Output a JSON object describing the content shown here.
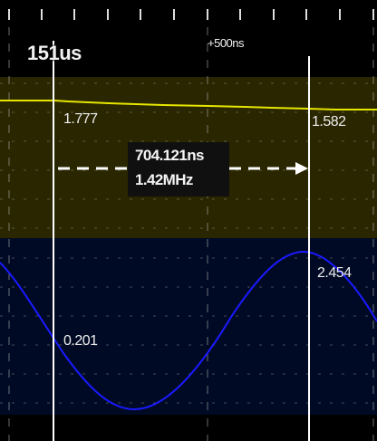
{
  "timebase": {
    "cursor_time": "151us",
    "offset_label": "+500ns"
  },
  "channel_a": {
    "value_left": "1.777",
    "value_right": "1.582",
    "trace_color": "#e6e600",
    "band_color": "#2a2600"
  },
  "channel_b": {
    "value_left": "0.201",
    "value_right": "2.454",
    "trace_color": "#1a1aff",
    "band_color": "#000a24"
  },
  "measurement": {
    "period": "704.121ns",
    "frequency": "1.42MHz"
  },
  "colors": {
    "grid": "#c8c8c8",
    "cursor": "#ffffff",
    "background": "#000000"
  }
}
